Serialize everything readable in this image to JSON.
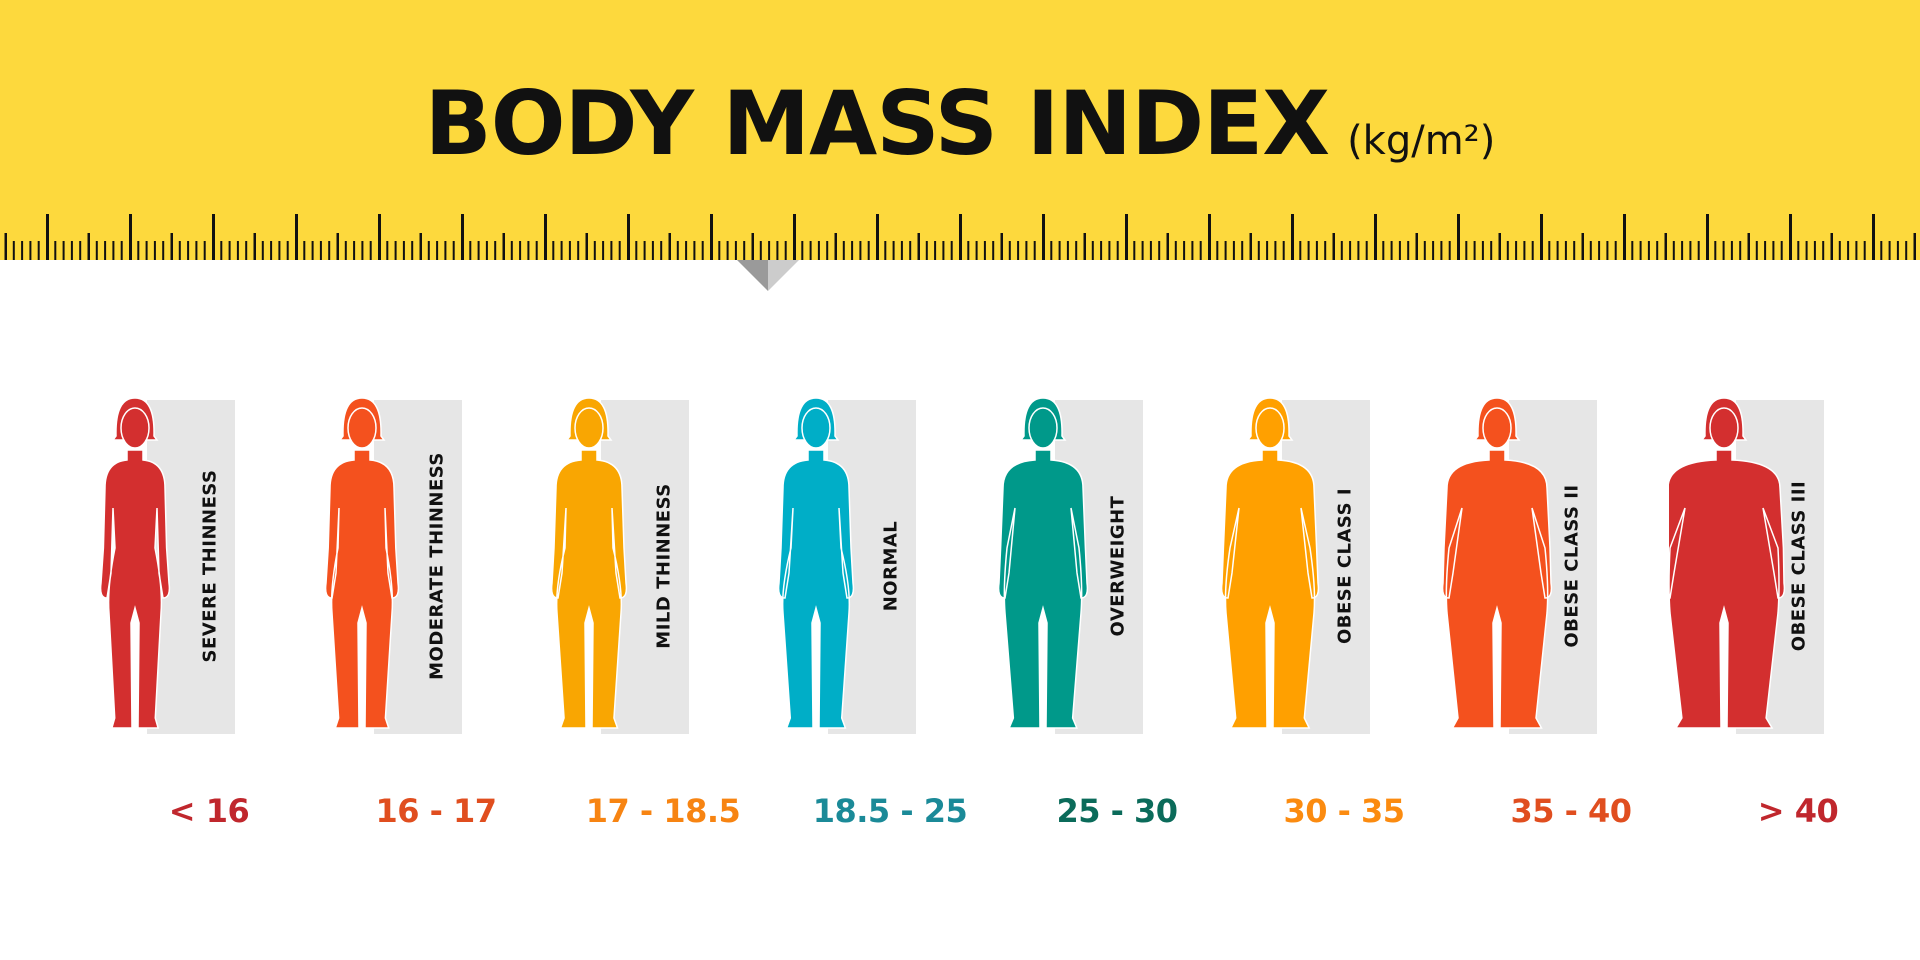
{
  "title": {
    "main": "BODY MASS INDEX",
    "unit": "(kg/m²)"
  },
  "colors": {
    "banner": "#fdd93d",
    "panel": "#e6e6e6"
  },
  "categories": [
    {
      "label": "SEVERE THINNESS",
      "range": "< 16",
      "body_color": "#d32f2f",
      "range_color": "#c0272d"
    },
    {
      "label": "MODERATE THINNESS",
      "range": "16 - 17",
      "body_color": "#f4511e",
      "range_color": "#e04e1f"
    },
    {
      "label": "MILD THINNESS",
      "range": "17 - 18.5",
      "body_color": "#f9a602",
      "range_color": "#f78412"
    },
    {
      "label": "NORMAL",
      "range": "18.5 - 25",
      "body_color": "#00aec7",
      "range_color": "#1b8a98"
    },
    {
      "label": "OVERWEIGHT",
      "range": "25 - 30",
      "body_color": "#00998a",
      "range_color": "#0b6b5a"
    },
    {
      "label": "OBESE CLASS I",
      "range": "30 - 35",
      "body_color": "#ffa000",
      "range_color": "#fb8b10"
    },
    {
      "label": "OBESE CLASS II",
      "range": "35 - 40",
      "body_color": "#f4511e",
      "range_color": "#e04e1f"
    },
    {
      "label": "OBESE CLASS III",
      "range": "> 40",
      "body_color": "#d32f2f",
      "range_color": "#c0272d"
    }
  ]
}
